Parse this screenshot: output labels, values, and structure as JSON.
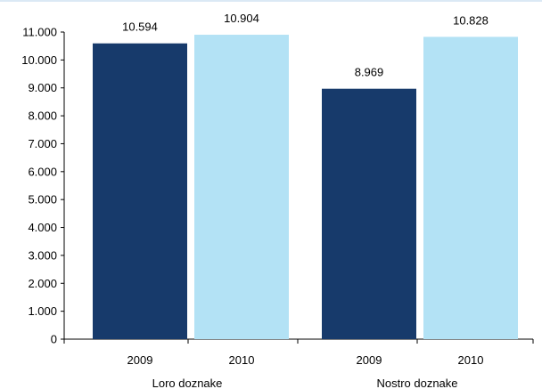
{
  "chart_data": {
    "type": "bar",
    "ylim": [
      0,
      11000
    ],
    "yticks": [
      0,
      1000,
      2000,
      3000,
      4000,
      5000,
      6000,
      7000,
      8000,
      9000,
      10000,
      11000
    ],
    "ytick_labels": [
      "0",
      "1.000",
      "2.000",
      "3.000",
      "4.000",
      "5.000",
      "6.000",
      "7.000",
      "8.000",
      "9.000",
      "10.000",
      "11.000"
    ],
    "grid": false,
    "legend": "none",
    "groups": [
      {
        "label": "Loro doznake",
        "bars": [
          {
            "category": "2009",
            "value": 10594,
            "value_label": "10.594",
            "color": "#173a6b"
          },
          {
            "category": "2010",
            "value": 10904,
            "value_label": "10.904",
            "color": "#b3e2f5"
          }
        ]
      },
      {
        "label": "Nostro doznake",
        "bars": [
          {
            "category": "2009",
            "value": 8969,
            "value_label": "8.969",
            "color": "#173a6b"
          },
          {
            "category": "2010",
            "value": 10828,
            "value_label": "10.828",
            "color": "#b3e2f5"
          }
        ]
      }
    ],
    "colors": {
      "axis": "#000000",
      "y2009": "#173a6b",
      "y2010": "#b3e2f5"
    }
  }
}
